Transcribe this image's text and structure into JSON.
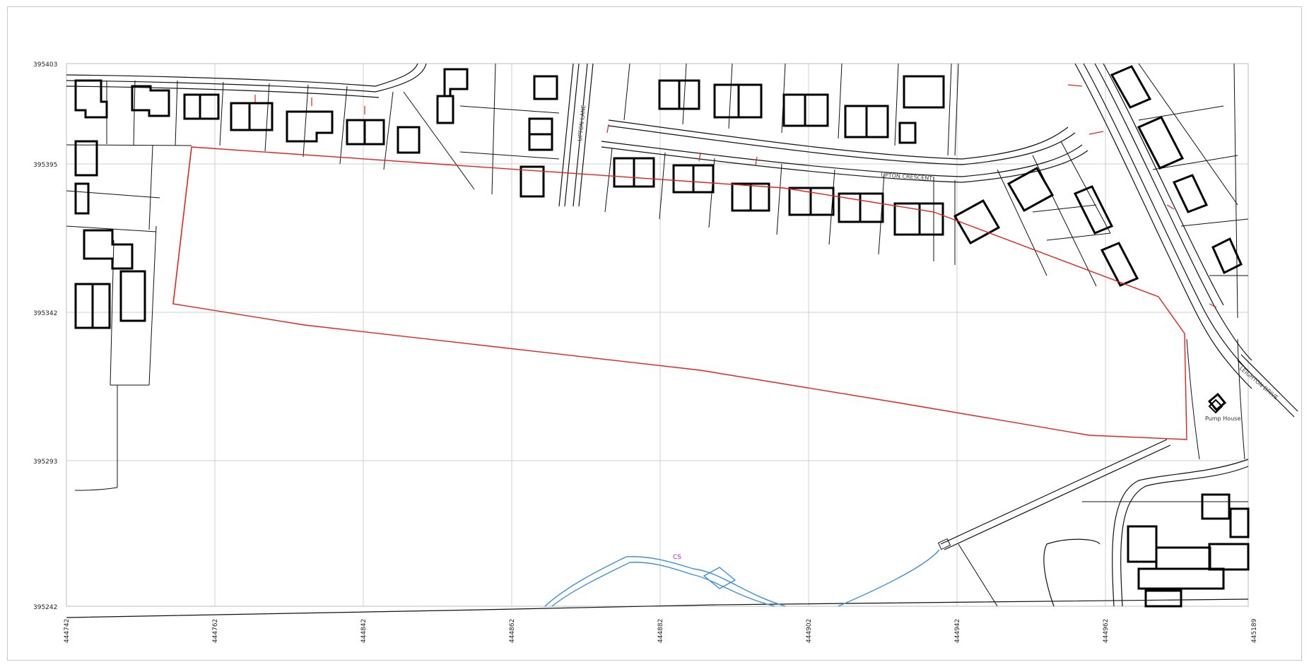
{
  "map": {
    "x_axis_labels": [
      "444742",
      "444762",
      "444842",
      "444862",
      "444882",
      "444902",
      "444942",
      "444962",
      "445189"
    ],
    "y_axis_labels": [
      "395403",
      "395395",
      "395342",
      "395293",
      "395242"
    ],
    "road_labels": {
      "crescent": "UPTON CRESCENT",
      "lane": "UPTON LANE",
      "drive": "LEIGHTON DRIVE"
    },
    "feature_labels": {
      "pump_house": "Pump House",
      "water": "CS"
    },
    "colors": {
      "site_boundary": "#e8201c",
      "watercourse": "#3f8fe0",
      "grid": "#cfcfcf"
    }
  }
}
